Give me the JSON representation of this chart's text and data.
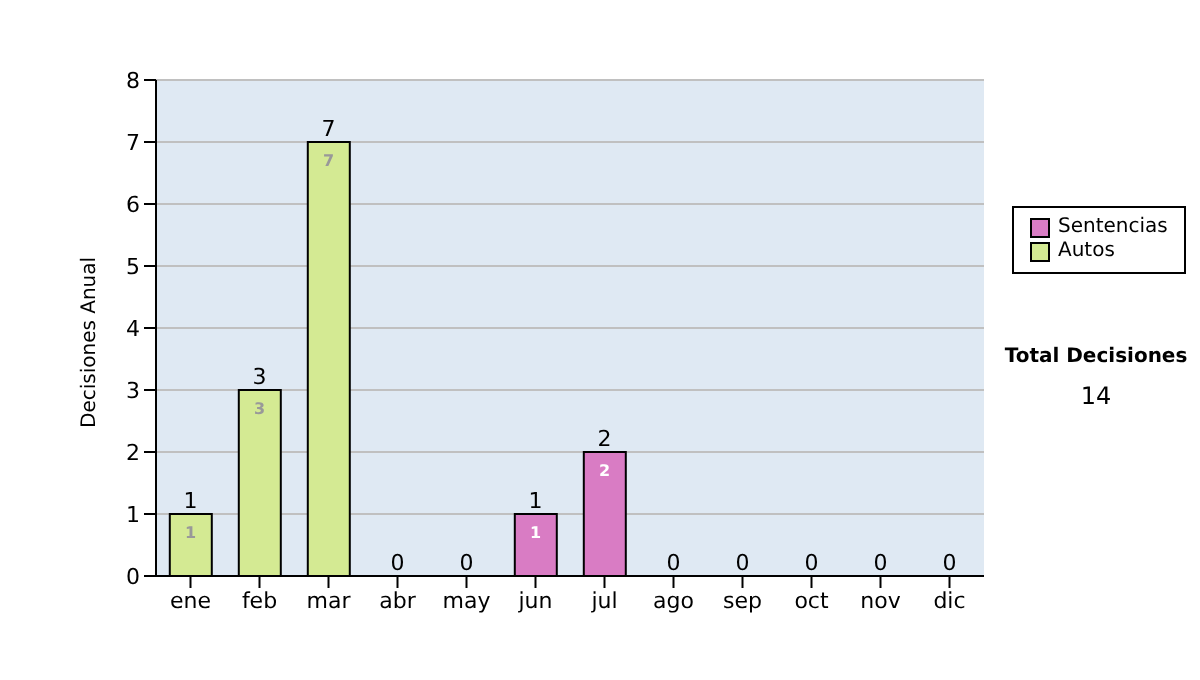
{
  "chart_data": {
    "type": "bar",
    "stacked": true,
    "ylabel": "Decisiones Anual",
    "categories": [
      "ene",
      "feb",
      "mar",
      "abr",
      "may",
      "jun",
      "jul",
      "ago",
      "sep",
      "oct",
      "nov",
      "dic"
    ],
    "series": [
      {
        "name": "Sentencias",
        "color": "#d97cc4",
        "values": [
          0,
          0,
          0,
          0,
          0,
          1,
          2,
          0,
          0,
          0,
          0,
          0
        ],
        "value_labels": [
          null,
          null,
          null,
          null,
          null,
          "1",
          "2",
          null,
          null,
          null,
          null,
          null
        ]
      },
      {
        "name": "Autos",
        "color": "#d4ea93",
        "values": [
          1,
          3,
          7,
          0,
          0,
          0,
          0,
          0,
          0,
          0,
          0,
          0
        ],
        "value_labels": [
          "1",
          "3",
          "7",
          null,
          null,
          null,
          null,
          null,
          null,
          null,
          null,
          null
        ]
      }
    ],
    "totals": [
      "1",
      "3",
      "7",
      "0",
      "0",
      "1",
      "2",
      "0",
      "0",
      "0",
      "0",
      "0"
    ],
    "ylim": [
      0,
      8
    ],
    "yticks": [
      0,
      1,
      2,
      3,
      4,
      5,
      6,
      7,
      8
    ],
    "grid": "y",
    "legend": "right",
    "annotations": [
      "Total Decisiones",
      "14"
    ]
  }
}
